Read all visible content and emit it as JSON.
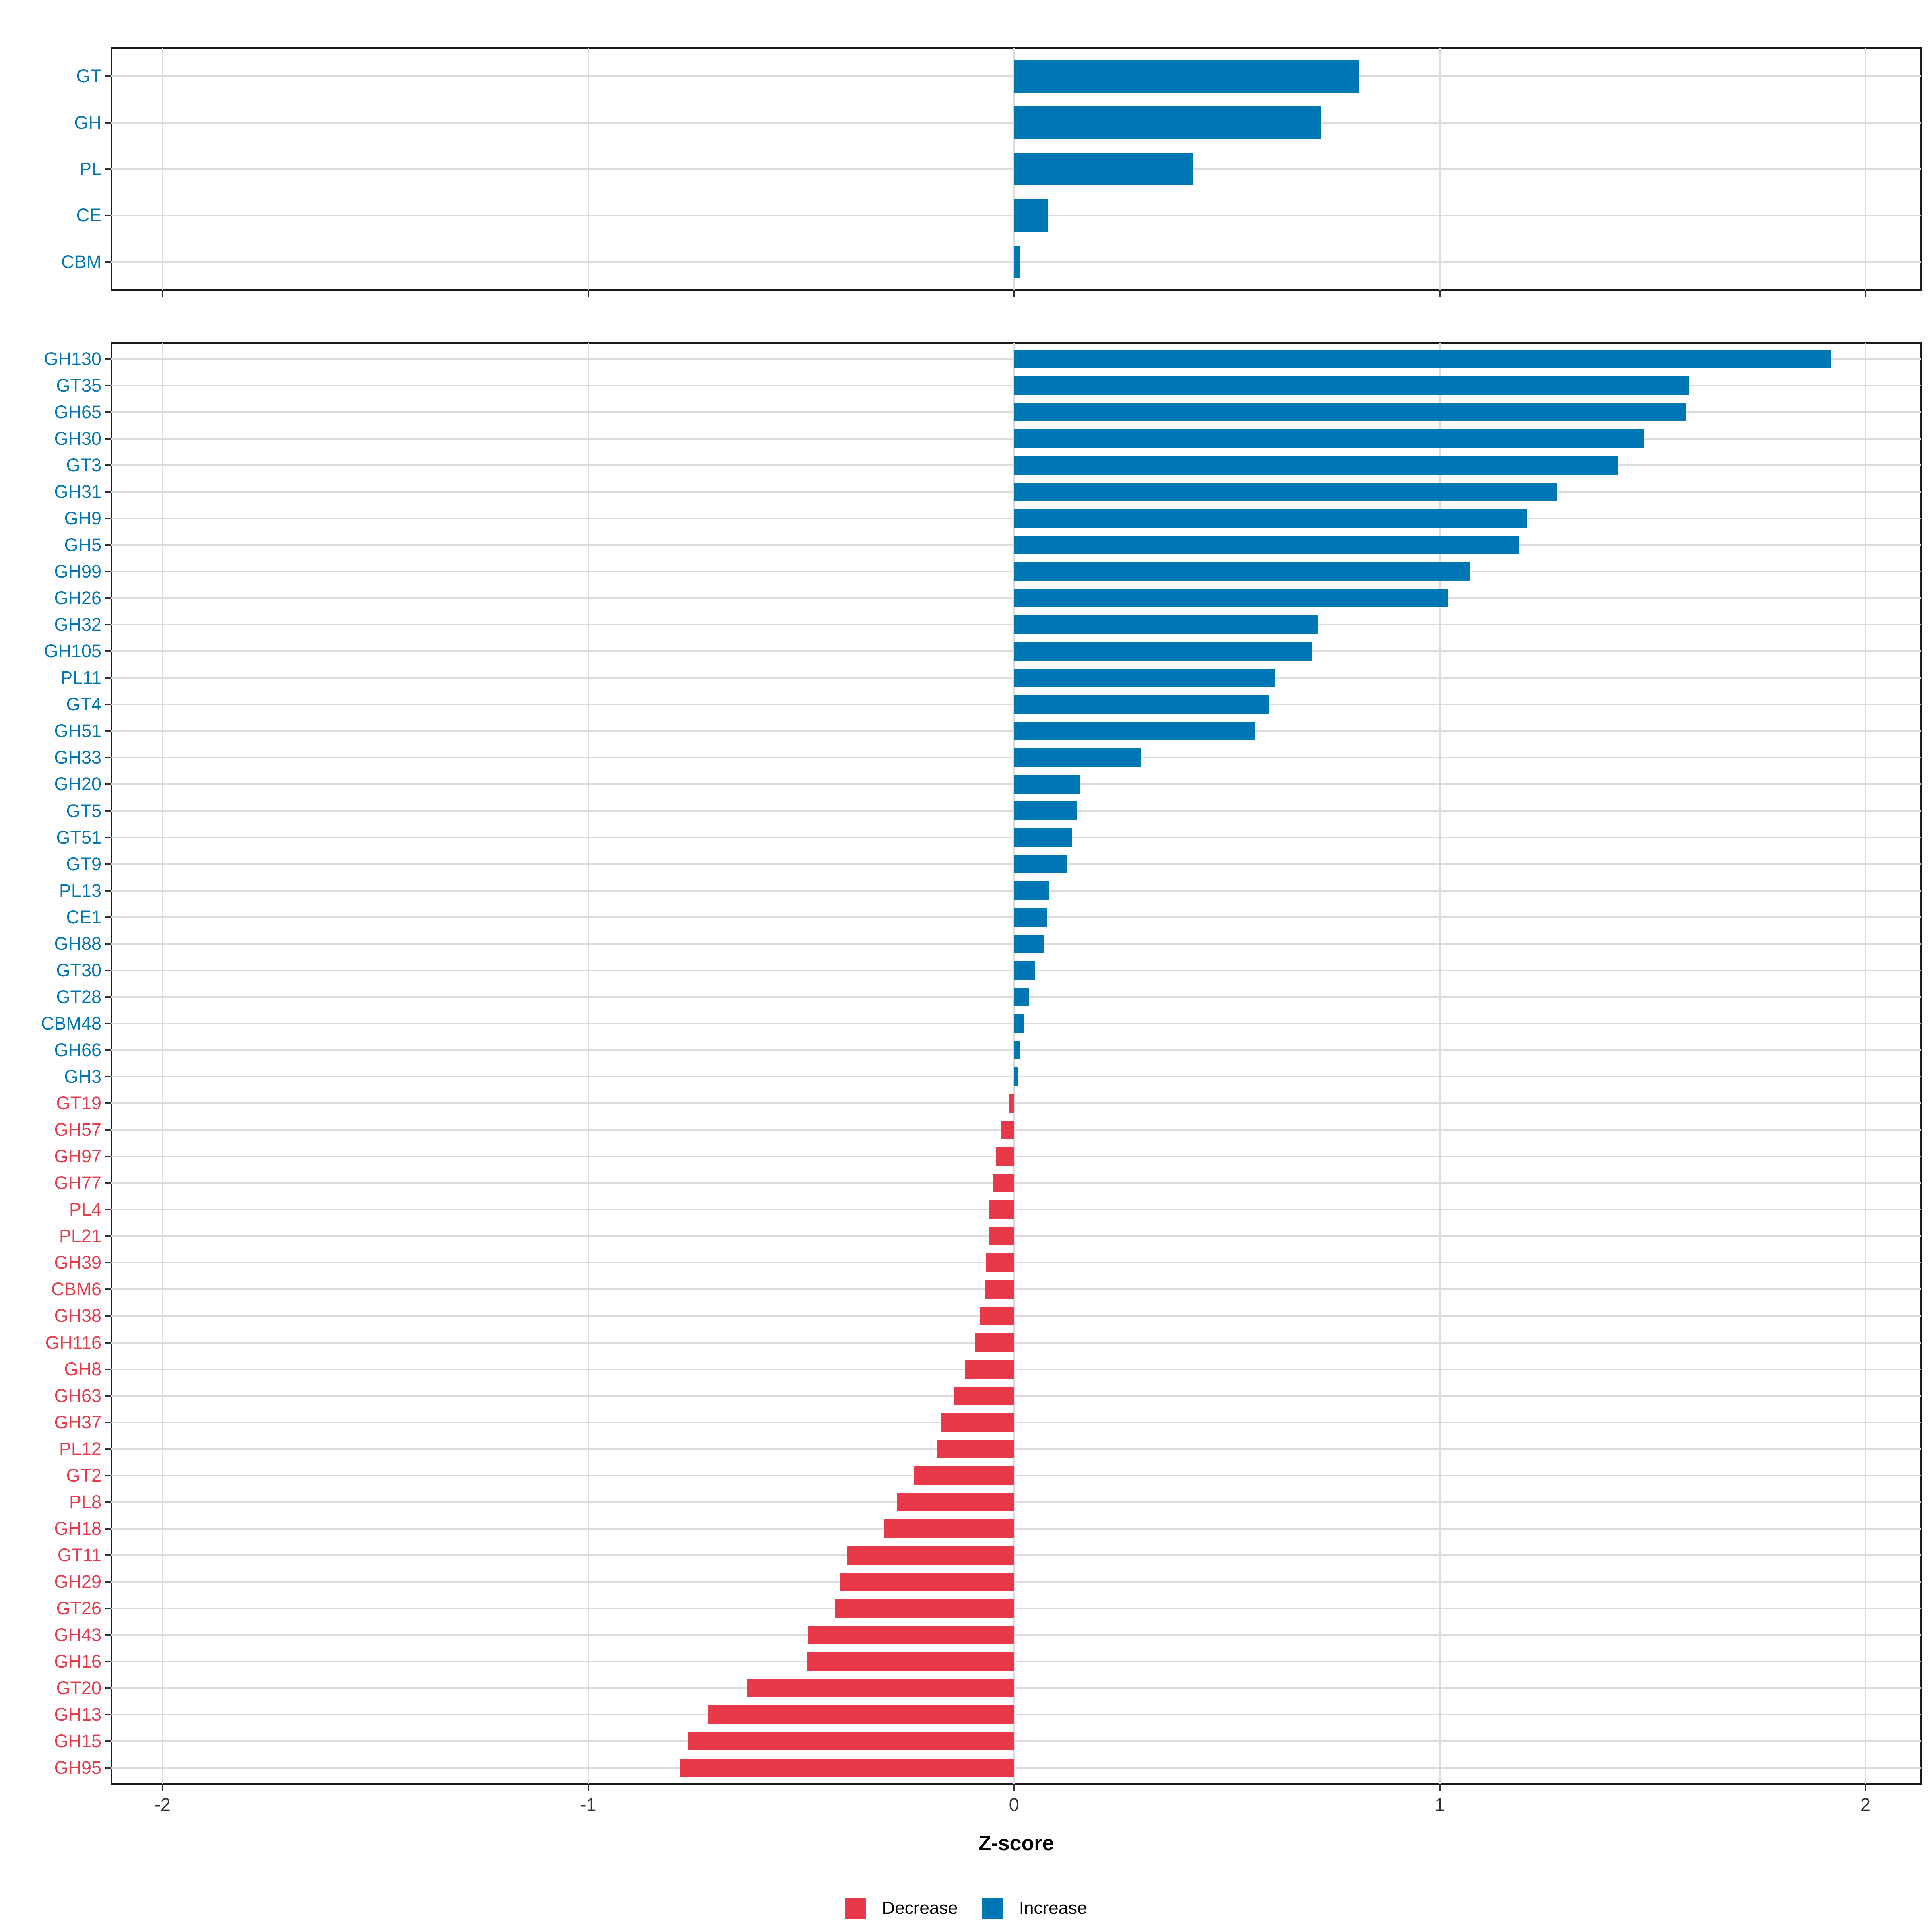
{
  "axis": {
    "xlabel": "Z-score",
    "tick_values": [
      -2,
      -1,
      0,
      1,
      2
    ],
    "tick_labels": [
      "-2",
      "-1",
      "0",
      "1",
      "2"
    ],
    "xmin": -2.12,
    "xmax": 2.13,
    "grid": "on"
  },
  "colors": {
    "increase": "#0076b4",
    "decrease": "#e7394a",
    "grid": "#dcdcdc",
    "panel_border": "#1a1a1a",
    "tick": "#333333",
    "axis_text": "#303030"
  },
  "legend": {
    "position": "bottom",
    "items": [
      {
        "label": "Decrease",
        "key": "decrease"
      },
      {
        "label": "Increase",
        "key": "increase"
      }
    ]
  },
  "chart_data": [
    {
      "type": "bar",
      "orientation": "horizontal",
      "panel": "cazyme-class",
      "categories": [
        "GT",
        "GH",
        "PL",
        "CE",
        "CBM"
      ],
      "values": [
        0.81,
        0.72,
        0.42,
        0.079,
        0.015
      ]
    },
    {
      "type": "bar",
      "orientation": "horizontal",
      "panel": "cazyme-family",
      "categories": [
        "GH130",
        "GT35",
        "GH65",
        "GH30",
        "GT3",
        "GH31",
        "GH9",
        "GH5",
        "GH99",
        "GH26",
        "GH32",
        "GH105",
        "PL11",
        "GT4",
        "GH51",
        "GH33",
        "GH20",
        "GT5",
        "GT51",
        "GT9",
        "PL13",
        "CE1",
        "GH88",
        "GT30",
        "GT28",
        "CBM48",
        "GH66",
        "GH3",
        "GT19",
        "GH57",
        "GH97",
        "GH77",
        "PL4",
        "PL21",
        "GH39",
        "CBM6",
        "GH38",
        "GH116",
        "GH8",
        "GH63",
        "GH37",
        "PL12",
        "GT2",
        "PL8",
        "GH18",
        "GT11",
        "GH29",
        "GT26",
        "GH43",
        "GH16",
        "GT20",
        "GH13",
        "GH15",
        "GH95"
      ],
      "values": [
        1.92,
        1.585,
        1.58,
        1.48,
        1.42,
        1.275,
        1.205,
        1.185,
        1.07,
        1.02,
        0.715,
        0.7,
        0.613,
        0.598,
        0.567,
        0.3,
        0.155,
        0.148,
        0.137,
        0.126,
        0.081,
        0.078,
        0.072,
        0.049,
        0.035,
        0.024,
        0.014,
        0.009,
        -0.012,
        -0.03,
        -0.043,
        -0.05,
        -0.058,
        -0.06,
        -0.065,
        -0.068,
        -0.08,
        -0.092,
        -0.115,
        -0.14,
        -0.17,
        -0.18,
        -0.235,
        -0.275,
        -0.306,
        -0.392,
        -0.41,
        -0.42,
        -0.483,
        -0.487,
        -0.628,
        -0.718,
        -0.765,
        -0.785
      ]
    }
  ]
}
